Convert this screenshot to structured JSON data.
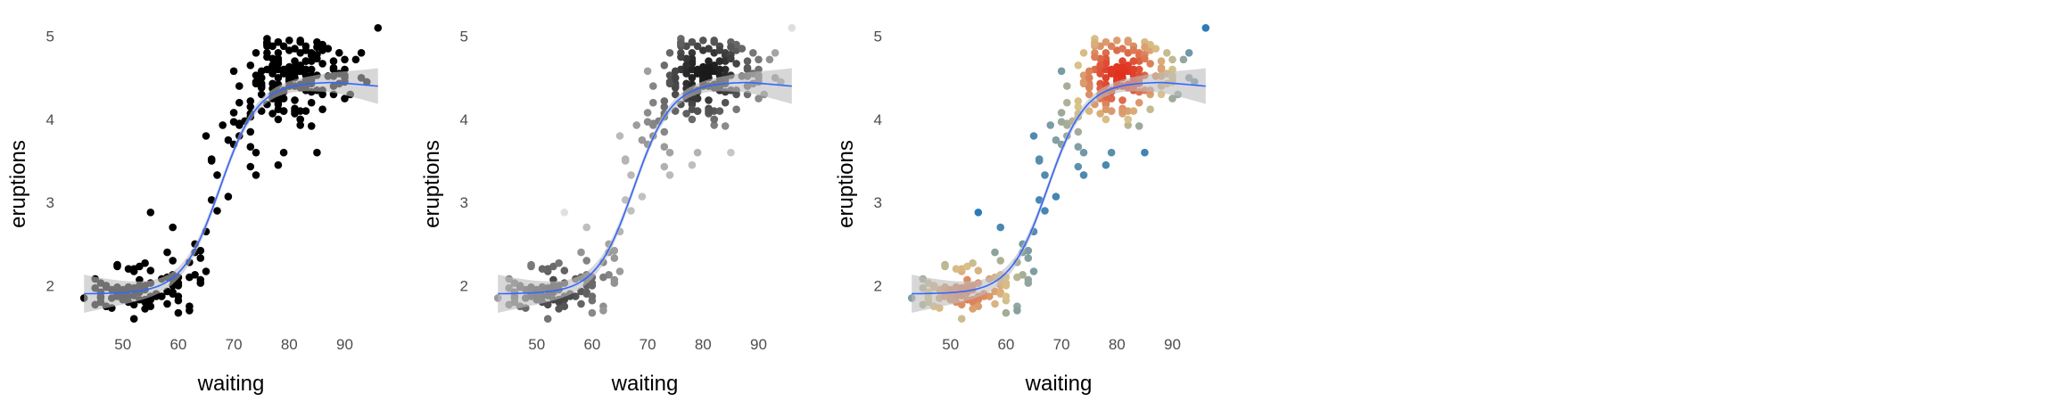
{
  "chart_data": [
    {
      "type": "scatter",
      "xlabel": "waiting",
      "ylabel": "eruptions",
      "xlim": [
        42,
        97
      ],
      "ylim": [
        1.5,
        5.2
      ],
      "xticks": [
        50,
        60,
        70,
        80,
        90
      ],
      "yticks": [
        2,
        3,
        4,
        5
      ],
      "grid": false,
      "legend": "none",
      "point_color_mode": "solid",
      "point_color": "#000000",
      "smooth": true,
      "smooth_color": "#3366ff",
      "band_color": "#bdbdbd"
    },
    {
      "type": "scatter",
      "xlabel": "waiting",
      "ylabel": "eruptions",
      "xlim": [
        42,
        97
      ],
      "ylim": [
        1.5,
        5.2
      ],
      "xticks": [
        50,
        60,
        70,
        80,
        90
      ],
      "yticks": [
        2,
        3,
        4,
        5
      ],
      "grid": false,
      "legend": "none",
      "point_color_mode": "grayscale-by-density",
      "smooth": true,
      "smooth_color": "#3366ff",
      "band_color": "#bdbdbd"
    },
    {
      "type": "scatter",
      "xlabel": "waiting",
      "ylabel": "eruptions",
      "xlim": [
        42,
        97
      ],
      "ylim": [
        1.5,
        5.2
      ],
      "xticks": [
        50,
        60,
        70,
        80,
        90
      ],
      "yticks": [
        2,
        3,
        4,
        5
      ],
      "grid": false,
      "legend": "none",
      "point_color_mode": "diverging-by-density",
      "palette": [
        "#2b7bba",
        "#d9c38a",
        "#e0301e"
      ],
      "smooth": true,
      "smooth_color": "#3366ff",
      "band_color": "#bdbdbd"
    }
  ],
  "points": [
    [
      79,
      3.6
    ],
    [
      54,
      1.8
    ],
    [
      74,
      3.33
    ],
    [
      62,
      2.28
    ],
    [
      85,
      4.53
    ],
    [
      55,
      2.88
    ],
    [
      88,
      4.7
    ],
    [
      85,
      3.6
    ],
    [
      51,
      1.95
    ],
    [
      85,
      4.35
    ],
    [
      54,
      1.83
    ],
    [
      84,
      3.92
    ],
    [
      78,
      4.2
    ],
    [
      47,
      1.75
    ],
    [
      83,
      4.7
    ],
    [
      52,
      2.17
    ],
    [
      62,
      1.75
    ],
    [
      84,
      4.8
    ],
    [
      52,
      1.6
    ],
    [
      79,
      4.25
    ],
    [
      51,
      1.8
    ],
    [
      47,
      1.75
    ],
    [
      78,
      3.45
    ],
    [
      69,
      3.07
    ],
    [
      74,
      4.53
    ],
    [
      83,
      4.6
    ],
    [
      55,
      1.83
    ],
    [
      76,
      4.6
    ],
    [
      78,
      4.5
    ],
    [
      79,
      4.1
    ],
    [
      73,
      3.85
    ],
    [
      77,
      4.43
    ],
    [
      66,
      3.5
    ],
    [
      80,
      4.55
    ],
    [
      74,
      3.6
    ],
    [
      52,
      1.97
    ],
    [
      48,
      1.95
    ],
    [
      80,
      4.63
    ],
    [
      59,
      2.0
    ],
    [
      90,
      4.5
    ],
    [
      80,
      4.4
    ],
    [
      58,
      1.93
    ],
    [
      84,
      4.6
    ],
    [
      58,
      2.1
    ],
    [
      73,
      3.67
    ],
    [
      83,
      4.53
    ],
    [
      64,
      2.33
    ],
    [
      53,
      1.93
    ],
    [
      82,
      4.65
    ],
    [
      59,
      2.3
    ],
    [
      75,
      4.58
    ],
    [
      90,
      4.25
    ],
    [
      54,
      1.82
    ],
    [
      80,
      4.83
    ],
    [
      54,
      1.95
    ],
    [
      83,
      4.35
    ],
    [
      71,
      3.95
    ],
    [
      64,
      2.42
    ],
    [
      77,
      4.88
    ],
    [
      81,
      4.07
    ],
    [
      59,
      2.7
    ],
    [
      84,
      4.77
    ],
    [
      48,
      1.73
    ],
    [
      82,
      4.42
    ],
    [
      60,
      1.82
    ],
    [
      92,
      4.72
    ],
    [
      78,
      4.18
    ],
    [
      78,
      4.7
    ],
    [
      65,
      2.17
    ],
    [
      73,
      4.65
    ],
    [
      82,
      4.0
    ],
    [
      56,
      1.87
    ],
    [
      79,
      4.1
    ],
    [
      71,
      4.4
    ],
    [
      62,
      1.7
    ],
    [
      76,
      4.8
    ],
    [
      60,
      1.67
    ],
    [
      78,
      4.93
    ],
    [
      76,
      4.88
    ],
    [
      83,
      4.47
    ],
    [
      75,
      4.5
    ],
    [
      82,
      4.1
    ],
    [
      70,
      3.7
    ],
    [
      65,
      3.8
    ],
    [
      73,
      3.43
    ],
    [
      88,
      4.6
    ],
    [
      76,
      4.9
    ],
    [
      80,
      4.5
    ],
    [
      48,
      1.85
    ],
    [
      86,
      4.3
    ],
    [
      60,
      2.0
    ],
    [
      90,
      4.45
    ],
    [
      50,
      1.83
    ],
    [
      78,
      4.8
    ],
    [
      63,
      2.13
    ],
    [
      72,
      3.98
    ],
    [
      84,
      4.7
    ],
    [
      75,
      4.3
    ],
    [
      51,
      1.98
    ],
    [
      82,
      4.58
    ],
    [
      62,
      2.1
    ],
    [
      88,
      4.4
    ],
    [
      49,
      1.87
    ],
    [
      83,
      4.35
    ],
    [
      81,
      4.23
    ],
    [
      47,
      2.0
    ],
    [
      84,
      4.43
    ],
    [
      52,
      2.2
    ],
    [
      86,
      4.83
    ],
    [
      81,
      4.13
    ],
    [
      75,
      4.1
    ],
    [
      59,
      1.9
    ],
    [
      89,
      4.8
    ],
    [
      79,
      4.33
    ],
    [
      59,
      1.92
    ],
    [
      81,
      4.63
    ],
    [
      50,
      1.93
    ],
    [
      85,
      4.93
    ],
    [
      59,
      2.07
    ],
    [
      87,
      4.85
    ],
    [
      53,
      1.95
    ],
    [
      69,
      3.75
    ],
    [
      77,
      4.62
    ],
    [
      56,
      1.88
    ],
    [
      88,
      4.62
    ],
    [
      81,
      4.4
    ],
    [
      45,
      1.97
    ],
    [
      82,
      4.58
    ],
    [
      55,
      2.03
    ],
    [
      90,
      4.6
    ],
    [
      45,
      2.08
    ],
    [
      83,
      4.1
    ],
    [
      56,
      1.9
    ],
    [
      89,
      4.43
    ],
    [
      46,
      2.03
    ],
    [
      82,
      4.8
    ],
    [
      51,
      1.98
    ],
    [
      86,
      4.12
    ],
    [
      53,
      2.0
    ],
    [
      79,
      4.57
    ],
    [
      81,
      4.62
    ],
    [
      60,
      1.87
    ],
    [
      82,
      4.38
    ],
    [
      77,
      4.07
    ],
    [
      76,
      4.93
    ],
    [
      59,
      2.13
    ],
    [
      80,
      4.47
    ],
    [
      49,
      1.9
    ],
    [
      96,
      5.1
    ],
    [
      53,
      2.07
    ],
    [
      77,
      4.3
    ],
    [
      77,
      4.73
    ],
    [
      65,
      2.65
    ],
    [
      81,
      4.55
    ],
    [
      71,
      3.8
    ],
    [
      70,
      4.08
    ],
    [
      81,
      4.85
    ],
    [
      93,
      4.5
    ],
    [
      53,
      2.23
    ],
    [
      89,
      4.55
    ],
    [
      45,
      1.77
    ],
    [
      86,
      4.67
    ],
    [
      58,
      2.4
    ],
    [
      78,
      4.73
    ],
    [
      66,
      3.52
    ],
    [
      76,
      4.97
    ],
    [
      63,
      2.5
    ],
    [
      88,
      4.52
    ],
    [
      52,
      1.77
    ],
    [
      93,
      4.8
    ],
    [
      49,
      1.98
    ],
    [
      57,
      1.87
    ],
    [
      77,
      4.65
    ],
    [
      68,
      3.93
    ],
    [
      81,
      4.7
    ],
    [
      81,
      4.5
    ],
    [
      73,
      4.03
    ],
    [
      50,
      1.95
    ],
    [
      85,
      4.78
    ],
    [
      74,
      4.45
    ],
    [
      55,
      1.87
    ],
    [
      77,
      4.73
    ],
    [
      83,
      4.7
    ],
    [
      83,
      4.88
    ],
    [
      51,
      2.2
    ],
    [
      78,
      4.33
    ],
    [
      84,
      4.48
    ],
    [
      46,
      1.85
    ],
    [
      83,
      4.83
    ],
    [
      55,
      2.18
    ],
    [
      81,
      4.58
    ],
    [
      57,
      1.87
    ],
    [
      76,
      4.75
    ],
    [
      84,
      4.33
    ],
    [
      77,
      4.55
    ],
    [
      81,
      4.1
    ],
    [
      87,
      4.52
    ],
    [
      77,
      4.37
    ],
    [
      51,
      1.87
    ],
    [
      78,
      4.42
    ],
    [
      60,
      2.1
    ],
    [
      82,
      4.95
    ],
    [
      91,
      4.3
    ],
    [
      53,
      1.83
    ],
    [
      78,
      4.6
    ],
    [
      46,
      1.87
    ],
    [
      77,
      4.25
    ],
    [
      84,
      4.2
    ],
    [
      49,
      2.25
    ],
    [
      83,
      4.6
    ],
    [
      71,
      3.93
    ],
    [
      80,
      4.95
    ],
    [
      49,
      2.23
    ],
    [
      75,
      4.43
    ],
    [
      64,
      2.07
    ],
    [
      76,
      4.92
    ],
    [
      53,
      1.92
    ],
    [
      94,
      4.45
    ],
    [
      55,
      1.75
    ],
    [
      76,
      4.18
    ],
    [
      50,
      1.88
    ],
    [
      82,
      3.93
    ],
    [
      54,
      2.0
    ],
    [
      75,
      4.4
    ],
    [
      78,
      4.0
    ],
    [
      79,
      4.88
    ],
    [
      78,
      4.12
    ],
    [
      78,
      4.67
    ],
    [
      70,
      3.97
    ],
    [
      79,
      4.55
    ],
    [
      70,
      4.58
    ],
    [
      54,
      2.27
    ],
    [
      86,
      4.35
    ],
    [
      50,
      1.87
    ],
    [
      90,
      4.72
    ],
    [
      54,
      1.82
    ],
    [
      54,
      1.72
    ],
    [
      77,
      4.65
    ],
    [
      79,
      4.35
    ],
    [
      64,
      2.03
    ],
    [
      75,
      4.5
    ],
    [
      47,
      1.98
    ],
    [
      86,
      4.9
    ],
    [
      63,
      2.4
    ],
    [
      85,
      4.87
    ],
    [
      82,
      4.0
    ],
    [
      57,
      2.08
    ],
    [
      82,
      4.93
    ],
    [
      67,
      3.33
    ],
    [
      74,
      4.43
    ],
    [
      54,
      1.83
    ],
    [
      83,
      4.45
    ],
    [
      73,
      4.15
    ],
    [
      73,
      4.07
    ],
    [
      88,
      4.3
    ],
    [
      80,
      4.45
    ],
    [
      71,
      4.2
    ],
    [
      83,
      4.4
    ],
    [
      56,
      1.88
    ],
    [
      79,
      4.6
    ],
    [
      78,
      4.27
    ],
    [
      84,
      4.53
    ],
    [
      58,
      1.78
    ],
    [
      83,
      4.4
    ],
    [
      43,
      1.85
    ],
    [
      60,
      2.03
    ],
    [
      75,
      4.38
    ],
    [
      81,
      4.62
    ],
    [
      46,
      1.8
    ],
    [
      90,
      4.53
    ],
    [
      46,
      1.92
    ],
    [
      74,
      4.8
    ],
    [
      66,
      3.03
    ],
    [
      76,
      4.92
    ],
    [
      67,
      2.9
    ],
    [
      73,
      4.22
    ],
    [
      84,
      4.53
    ],
    [
      52,
      1.88
    ],
    [
      78,
      4.93
    ],
    [
      85,
      4.73
    ]
  ]
}
